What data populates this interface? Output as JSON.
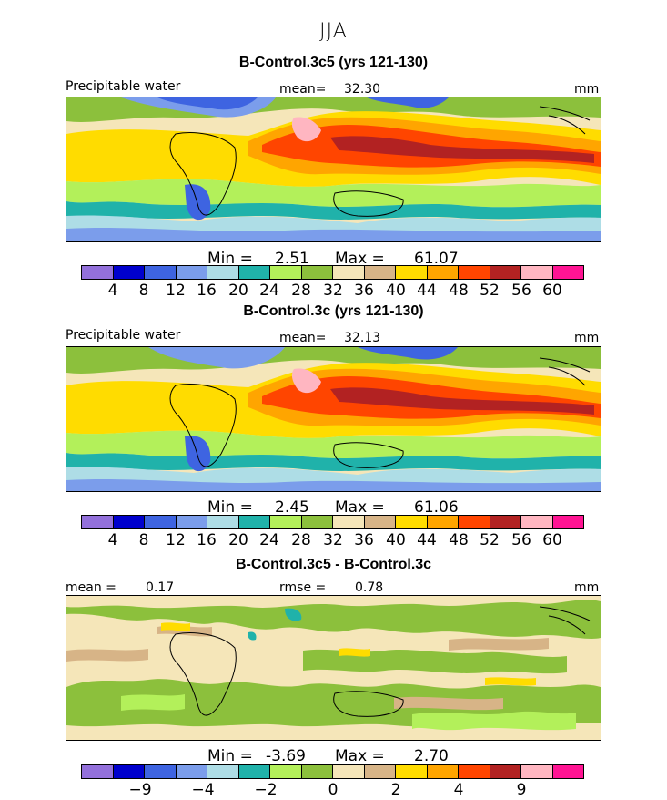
{
  "figure": {
    "season": "JJA",
    "units": "mm",
    "palette": [
      "#9370db",
      "#0000cd",
      "#3e64e1",
      "#7b9deb",
      "#aedde6",
      "#20b2aa",
      "#b3f05a",
      "#8cc03c",
      "#f5e6b9",
      "#d7b487",
      "#ffdc00",
      "#ffa500",
      "#ff4500",
      "#b22222",
      "#ffb6c1",
      "#ff1493"
    ]
  },
  "panels": [
    {
      "title": "B-Control.3c5 (yrs 121-130)",
      "left_label": "Precipitable water",
      "stat_label": "mean=",
      "stat_value": "32.30",
      "units": "mm",
      "min_label": "Min =",
      "min_value": "2.51",
      "max_label": "Max =",
      "max_value": "61.07",
      "ticks": [
        "4",
        "8",
        "12",
        "16",
        "20",
        "24",
        "28",
        "32",
        "36",
        "40",
        "44",
        "48",
        "52",
        "56",
        "60"
      ]
    },
    {
      "title": "B-Control.3c (yrs 121-130)",
      "left_label": "Precipitable water",
      "stat_label": "mean=",
      "stat_value": "32.13",
      "units": "mm",
      "min_label": "Min =",
      "min_value": "2.45",
      "max_label": "Max =",
      "max_value": "61.06",
      "ticks": [
        "4",
        "8",
        "12",
        "16",
        "20",
        "24",
        "28",
        "32",
        "36",
        "40",
        "44",
        "48",
        "52",
        "56",
        "60"
      ]
    },
    {
      "title": "B-Control.3c5 - B-Control.3c",
      "left_label": "mean =",
      "left_value": "0.17",
      "stat_label": "rmse =",
      "stat_value": "0.78",
      "units": "mm",
      "min_label": "Min =",
      "min_value": "-3.69",
      "max_label": "Max =",
      "max_value": "2.70",
      "ticks": [
        "−9",
        "−4",
        "−2",
        "0",
        "2",
        "4",
        "9"
      ]
    }
  ]
}
